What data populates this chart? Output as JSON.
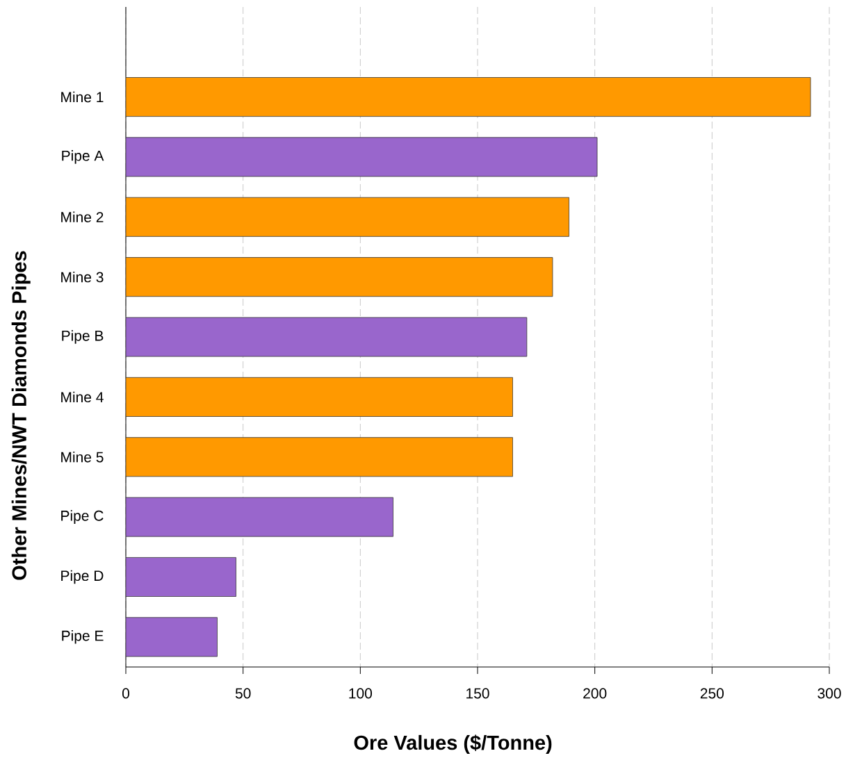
{
  "chart_data": {
    "type": "bar",
    "orientation": "horizontal",
    "xlabel": "Ore Values ($/Tonne)",
    "ylabel": "Other Mines/NWT Diamonds Pipes",
    "categories": [
      null,
      "Mine 1",
      "Pipe A",
      "Mine 2",
      "Mine 3",
      "Pipe B",
      "Mine 4",
      "Mine 5",
      "Pipe C",
      "Pipe D",
      "Pipe E"
    ],
    "values": [
      null,
      292,
      201,
      189,
      182,
      171,
      165,
      165,
      114,
      47,
      39
    ],
    "colors": [
      null,
      "#ff9900",
      "#9966cc",
      "#ff9900",
      "#ff9900",
      "#9966cc",
      "#ff9900",
      "#ff9900",
      "#9966cc",
      "#9966cc",
      "#9966cc"
    ],
    "xlim": [
      0,
      300
    ],
    "xticks": [
      0,
      50,
      100,
      150,
      200,
      250,
      300
    ],
    "grid": "x"
  }
}
